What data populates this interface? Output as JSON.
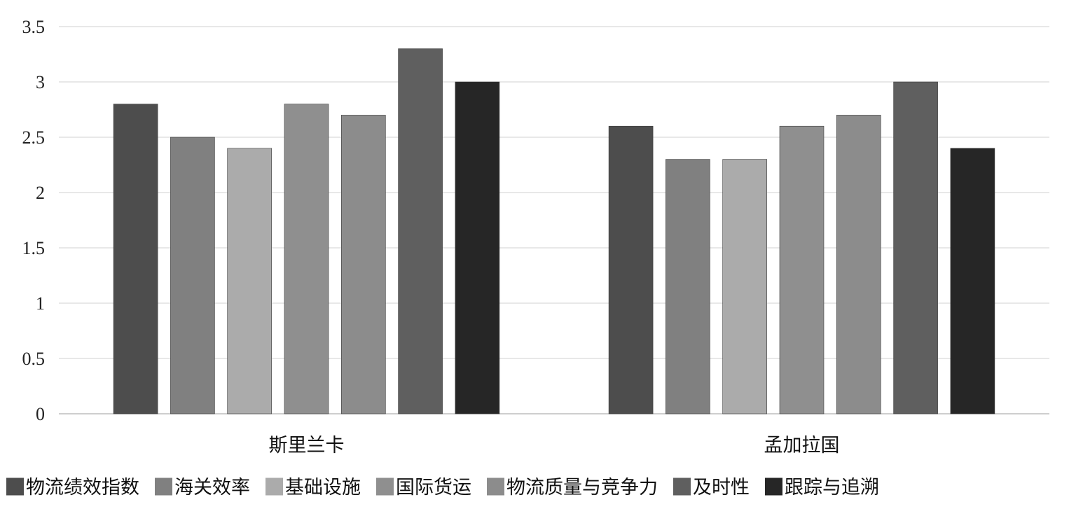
{
  "chart_data": {
    "type": "bar",
    "categories": [
      "斯里兰卡",
      "孟加拉国"
    ],
    "series": [
      {
        "name": "物流绩效指数",
        "values": [
          2.8,
          2.6
        ],
        "color": "#4d4d4d"
      },
      {
        "name": "海关效率",
        "values": [
          2.5,
          2.3
        ],
        "color": "#808080"
      },
      {
        "name": "基础设施",
        "values": [
          2.4,
          2.3
        ],
        "color": "#ababab"
      },
      {
        "name": "国际货运",
        "values": [
          2.8,
          2.6
        ],
        "color": "#8f8f8f"
      },
      {
        "name": "物流质量与竞争力",
        "values": [
          2.7,
          2.7
        ],
        "color": "#8c8c8c"
      },
      {
        "name": "及时性",
        "values": [
          3.3,
          3.0
        ],
        "color": "#5f5f5f"
      },
      {
        "name": "跟踪与追溯",
        "values": [
          3.0,
          2.4
        ],
        "color": "#262626"
      }
    ],
    "y_ticks": [
      "0",
      "0.5",
      "1",
      "1.5",
      "2",
      "2.5",
      "3",
      "3.5"
    ],
    "ylim": [
      0,
      3.5
    ],
    "grid": true,
    "legend_position": "bottom",
    "title": "",
    "xlabel": "",
    "ylabel": ""
  }
}
